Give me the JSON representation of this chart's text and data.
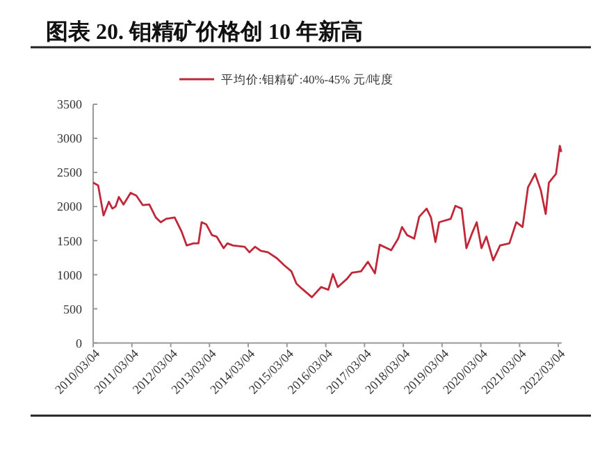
{
  "chart_data": {
    "type": "line",
    "title": "图表 20. 钼精矿价格创 10 年新高",
    "legend": "top",
    "grid": false,
    "marker": "none",
    "line_style": "solid",
    "xlim": [
      "2010-03-04",
      "2022-04-05"
    ],
    "xticks": [
      {
        "value": "2010-03-04",
        "label": "2010/03/04"
      },
      {
        "value": "2011-03-04",
        "label": "2011/03/04"
      },
      {
        "value": "2012-03-04",
        "label": "2012/03/04"
      },
      {
        "value": "2013-03-04",
        "label": "2013/03/04"
      },
      {
        "value": "2014-03-04",
        "label": "2014/03/04"
      },
      {
        "value": "2015-03-04",
        "label": "2015/03/04"
      },
      {
        "value": "2016-03-04",
        "label": "2016/03/04"
      },
      {
        "value": "2017-03-04",
        "label": "2017/03/04"
      },
      {
        "value": "2018-03-04",
        "label": "2018/03/04"
      },
      {
        "value": "2019-03-04",
        "label": "2019/03/04"
      },
      {
        "value": "2020-03-04",
        "label": "2020/03/04"
      },
      {
        "value": "2021-03-04",
        "label": "2021/03/04"
      },
      {
        "value": "2022-03-04",
        "label": "2022/03/04"
      }
    ],
    "ylim": [
      0,
      3500
    ],
    "yticks": [
      0,
      500,
      1000,
      1500,
      2000,
      2500,
      3000,
      3500
    ],
    "x": [
      "2010-03-04",
      "2010-04-20",
      "2010-06-10",
      "2010-07-30",
      "2010-09-01",
      "2010-10-01",
      "2010-11-01",
      "2010-12-15",
      "2011-02-20",
      "2011-04-15",
      "2011-06-15",
      "2011-08-15",
      "2011-10-15",
      "2011-12-01",
      "2012-01-20",
      "2012-04-10",
      "2012-06-15",
      "2012-08-01",
      "2012-10-05",
      "2012-11-20",
      "2012-12-20",
      "2013-02-01",
      "2013-03-28",
      "2013-05-10",
      "2013-07-15",
      "2013-08-20",
      "2013-10-10",
      "2014-01-30",
      "2014-03-15",
      "2014-05-08",
      "2014-07-01",
      "2014-09-05",
      "2014-12-01",
      "2015-02-05",
      "2015-04-15",
      "2015-06-01",
      "2015-07-20",
      "2015-10-25",
      "2016-01-20",
      "2016-03-28",
      "2016-05-10",
      "2016-06-25",
      "2016-09-20",
      "2016-11-05",
      "2017-01-30",
      "2017-04-05",
      "2017-06-10",
      "2017-07-25",
      "2017-11-10",
      "2018-01-15",
      "2018-02-20",
      "2018-04-10",
      "2018-06-15",
      "2018-08-01",
      "2018-10-10",
      "2018-11-20",
      "2019-01-01",
      "2019-02-05",
      "2019-05-25",
      "2019-07-08",
      "2019-09-05",
      "2019-10-20",
      "2019-12-10",
      "2020-01-25",
      "2020-03-10",
      "2020-04-25",
      "2020-06-28",
      "2020-09-01",
      "2020-11-28",
      "2021-02-01",
      "2021-04-01",
      "2021-05-22",
      "2021-07-28",
      "2021-09-20",
      "2021-11-05",
      "2021-12-05",
      "2022-02-10",
      "2022-03-18",
      "2022-04-01"
    ],
    "series": [
      {
        "name": "平均价:钼精矿:40%-45% 元/吨度",
        "color": "#c0283a",
        "values": [
          2350,
          2310,
          1870,
          2070,
          1970,
          2000,
          2140,
          2030,
          2200,
          2160,
          2020,
          2030,
          1840,
          1770,
          1820,
          1840,
          1630,
          1430,
          1460,
          1460,
          1770,
          1740,
          1580,
          1560,
          1390,
          1460,
          1430,
          1410,
          1330,
          1410,
          1350,
          1330,
          1240,
          1140,
          1050,
          870,
          800,
          670,
          820,
          780,
          1010,
          820,
          940,
          1030,
          1050,
          1190,
          1020,
          1440,
          1360,
          1530,
          1700,
          1580,
          1530,
          1850,
          1970,
          1840,
          1480,
          1770,
          1820,
          2010,
          1970,
          1390,
          1600,
          1770,
          1390,
          1560,
          1210,
          1430,
          1460,
          1770,
          1700,
          2280,
          2480,
          2240,
          1890,
          2350,
          2480,
          2890,
          2800
        ]
      }
    ]
  }
}
